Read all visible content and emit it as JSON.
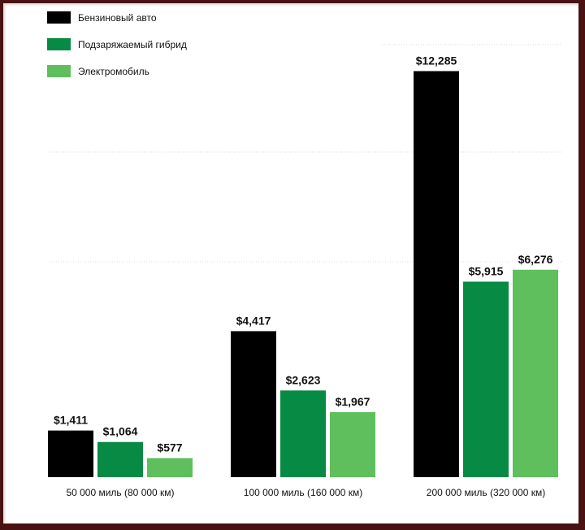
{
  "colors": {
    "gas": "#000000",
    "phev": "#078a43",
    "ev": "#5ebf5c",
    "frame": "#4a1212",
    "grid": "#d9d9d9"
  },
  "chart_data": {
    "type": "bar",
    "categories": [
      "50 000 миль (80 000 км)",
      "100 000 миль (160 000 км)",
      "200 000 миль (320 000 км)"
    ],
    "series": [
      {
        "name": "Бензиновый авто",
        "values": [
          1411,
          4417,
          12285
        ],
        "labels": [
          "$1,411",
          "$4,417",
          "$12,285"
        ]
      },
      {
        "name": "Подзаряжаемый гибрид",
        "values": [
          1064,
          2623,
          5915
        ],
        "labels": [
          "$1,064",
          "$2,623",
          "$5,915"
        ]
      },
      {
        "name": "Электромобиль",
        "values": [
          577,
          1967,
          6276
        ],
        "labels": [
          "$577",
          "$1,967",
          "$6,276"
        ]
      }
    ],
    "ylim": [
      0,
      13600
    ],
    "grid": true,
    "legend_position": "top-left"
  }
}
